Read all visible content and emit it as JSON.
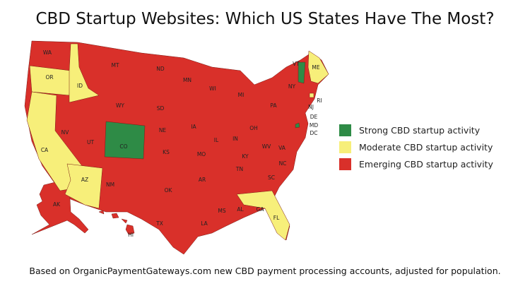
{
  "title": "CBD Startup Websites: Which US States Have The Most?",
  "footer": "Based on OrganicPaymentGateways.com new CBD payment processing accounts, adjusted for population.",
  "colors": {
    "strong": "#2e8b46",
    "moderate": "#f7ef7a",
    "emerging": "#d9302a"
  },
  "legend": [
    {
      "key": "strong",
      "label": "Strong CBD startup activity"
    },
    {
      "key": "moderate",
      "label": "Moderate CBD startup activity"
    },
    {
      "key": "emerging",
      "label": "Emerging CBD startup activity"
    }
  ],
  "states": [
    {
      "abbr": "WA",
      "level": "emerging"
    },
    {
      "abbr": "OR",
      "level": "moderate"
    },
    {
      "abbr": "CA",
      "level": "moderate"
    },
    {
      "abbr": "ID",
      "level": "moderate"
    },
    {
      "abbr": "NV",
      "level": "emerging"
    },
    {
      "abbr": "AZ",
      "level": "moderate"
    },
    {
      "abbr": "UT",
      "level": "emerging"
    },
    {
      "abbr": "MT",
      "level": "emerging"
    },
    {
      "abbr": "WY",
      "level": "emerging"
    },
    {
      "abbr": "CO",
      "level": "strong"
    },
    {
      "abbr": "NM",
      "level": "emerging"
    },
    {
      "abbr": "ND",
      "level": "emerging"
    },
    {
      "abbr": "SD",
      "level": "emerging"
    },
    {
      "abbr": "NE",
      "level": "emerging"
    },
    {
      "abbr": "KS",
      "level": "emerging"
    },
    {
      "abbr": "OK",
      "level": "emerging"
    },
    {
      "abbr": "TX",
      "level": "emerging"
    },
    {
      "abbr": "MN",
      "level": "emerging"
    },
    {
      "abbr": "IA",
      "level": "emerging"
    },
    {
      "abbr": "MO",
      "level": "emerging"
    },
    {
      "abbr": "AR",
      "level": "emerging"
    },
    {
      "abbr": "LA",
      "level": "emerging"
    },
    {
      "abbr": "WI",
      "level": "emerging"
    },
    {
      "abbr": "IL",
      "level": "emerging"
    },
    {
      "abbr": "MS",
      "level": "emerging"
    },
    {
      "abbr": "MI",
      "level": "emerging"
    },
    {
      "abbr": "IN",
      "level": "emerging"
    },
    {
      "abbr": "KY",
      "level": "emerging"
    },
    {
      "abbr": "TN",
      "level": "emerging"
    },
    {
      "abbr": "AL",
      "level": "emerging"
    },
    {
      "abbr": "GA",
      "level": "emerging"
    },
    {
      "abbr": "FL",
      "level": "moderate"
    },
    {
      "abbr": "OH",
      "level": "emerging"
    },
    {
      "abbr": "WV",
      "level": "emerging"
    },
    {
      "abbr": "VA",
      "level": "emerging"
    },
    {
      "abbr": "NC",
      "level": "emerging"
    },
    {
      "abbr": "SC",
      "level": "emerging"
    },
    {
      "abbr": "PA",
      "level": "emerging"
    },
    {
      "abbr": "NY",
      "level": "emerging"
    },
    {
      "abbr": "VT",
      "level": "strong"
    },
    {
      "abbr": "ME",
      "level": "moderate"
    },
    {
      "abbr": "RI",
      "level": "moderate"
    },
    {
      "abbr": "NJ",
      "level": "emerging"
    },
    {
      "abbr": "DE",
      "level": "emerging"
    },
    {
      "abbr": "MD",
      "level": "emerging"
    },
    {
      "abbr": "DC",
      "level": "strong"
    },
    {
      "abbr": "AK",
      "level": "emerging"
    },
    {
      "abbr": "HI",
      "level": "emerging"
    }
  ]
}
